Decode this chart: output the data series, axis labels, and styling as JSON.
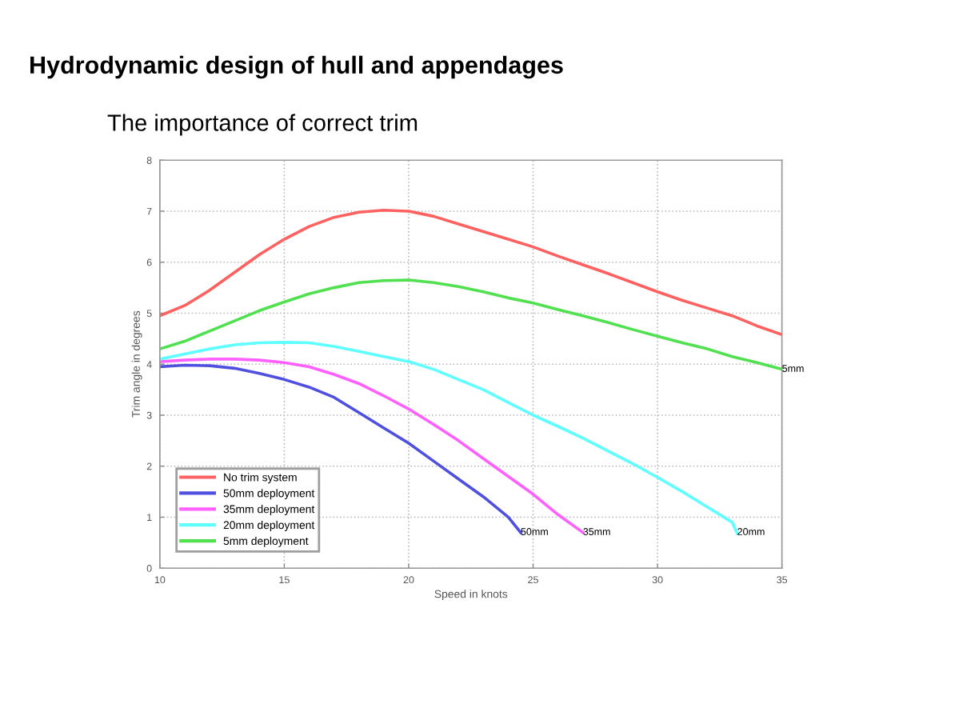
{
  "chart_data": {
    "type": "line",
    "title": "Hydrodynamic design of hull and appendages",
    "subtitle": "The importance of correct trim",
    "xlabel": "Speed in knots",
    "ylabel": "Trim angle in degrees",
    "xlim": [
      10,
      35
    ],
    "xticks": [
      10,
      15,
      20,
      25,
      30,
      35
    ],
    "ylim": [
      0,
      8
    ],
    "yticks": [
      0,
      1,
      2,
      3,
      4,
      5,
      6,
      7,
      8
    ],
    "grid": true,
    "legend": "bottom left",
    "line_style": "solid",
    "marker": "none",
    "series": [
      {
        "name": "No trim system",
        "color": "#ff6060",
        "x": [
          10,
          11,
          12,
          13,
          14,
          15,
          16,
          17,
          18,
          19,
          20,
          21,
          22,
          23,
          24,
          25,
          26,
          27,
          28,
          29,
          30,
          31,
          32,
          33,
          34,
          35
        ],
        "values": [
          4.95,
          5.15,
          5.45,
          5.8,
          6.15,
          6.45,
          6.7,
          6.88,
          6.98,
          7.02,
          7.0,
          6.9,
          6.75,
          6.6,
          6.45,
          6.3,
          6.12,
          5.95,
          5.78,
          5.6,
          5.42,
          5.25,
          5.1,
          4.95,
          4.75,
          4.58
        ]
      },
      {
        "name": "50mm deployment",
        "color": "#5050e0",
        "x": [
          10,
          11,
          12,
          13,
          14,
          15,
          16,
          17,
          18,
          19,
          20,
          21,
          22,
          23,
          24,
          24.5
        ],
        "values": [
          3.95,
          3.98,
          3.97,
          3.92,
          3.82,
          3.7,
          3.55,
          3.35,
          3.05,
          2.75,
          2.45,
          2.1,
          1.75,
          1.4,
          1.0,
          0.7
        ]
      },
      {
        "name": "35mm deployment",
        "color": "#ff60ff",
        "x": [
          10,
          11,
          12,
          13,
          14,
          15,
          16,
          17,
          18,
          19,
          20,
          21,
          22,
          23,
          24,
          25,
          26,
          27
        ],
        "values": [
          4.05,
          4.08,
          4.1,
          4.1,
          4.08,
          4.03,
          3.95,
          3.8,
          3.62,
          3.38,
          3.12,
          2.82,
          2.5,
          2.15,
          1.8,
          1.45,
          1.05,
          0.7
        ]
      },
      {
        "name": "20mm deployment",
        "color": "#60ffff",
        "x": [
          10,
          11,
          12,
          13,
          14,
          15,
          16,
          17,
          18,
          19,
          20,
          21,
          22,
          23,
          24,
          25,
          26,
          27,
          28,
          29,
          30,
          31,
          32,
          33,
          33.2
        ],
        "values": [
          4.1,
          4.2,
          4.3,
          4.38,
          4.42,
          4.43,
          4.42,
          4.35,
          4.25,
          4.15,
          4.05,
          3.9,
          3.7,
          3.5,
          3.25,
          3.0,
          2.78,
          2.55,
          2.3,
          2.05,
          1.78,
          1.5,
          1.2,
          0.9,
          0.68
        ]
      },
      {
        "name": "5mm deployment",
        "color": "#50e050",
        "x": [
          10,
          11,
          12,
          13,
          14,
          15,
          16,
          17,
          18,
          19,
          20,
          21,
          22,
          23,
          24,
          25,
          26,
          27,
          28,
          29,
          30,
          31,
          32,
          33,
          34,
          35
        ],
        "values": [
          4.3,
          4.45,
          4.65,
          4.85,
          5.05,
          5.22,
          5.38,
          5.5,
          5.6,
          5.64,
          5.65,
          5.6,
          5.52,
          5.42,
          5.3,
          5.2,
          5.07,
          4.95,
          4.82,
          4.68,
          4.55,
          4.42,
          4.3,
          4.15,
          4.03,
          3.9
        ]
      }
    ],
    "annotations": [
      {
        "text": "50mm",
        "x": 24.5,
        "y": 0.7
      },
      {
        "text": "35mm",
        "x": 27,
        "y": 0.7
      },
      {
        "text": "20mm",
        "x": 33.2,
        "y": 0.7
      },
      {
        "text": "5mm",
        "x": 35,
        "y": 3.9
      }
    ]
  }
}
